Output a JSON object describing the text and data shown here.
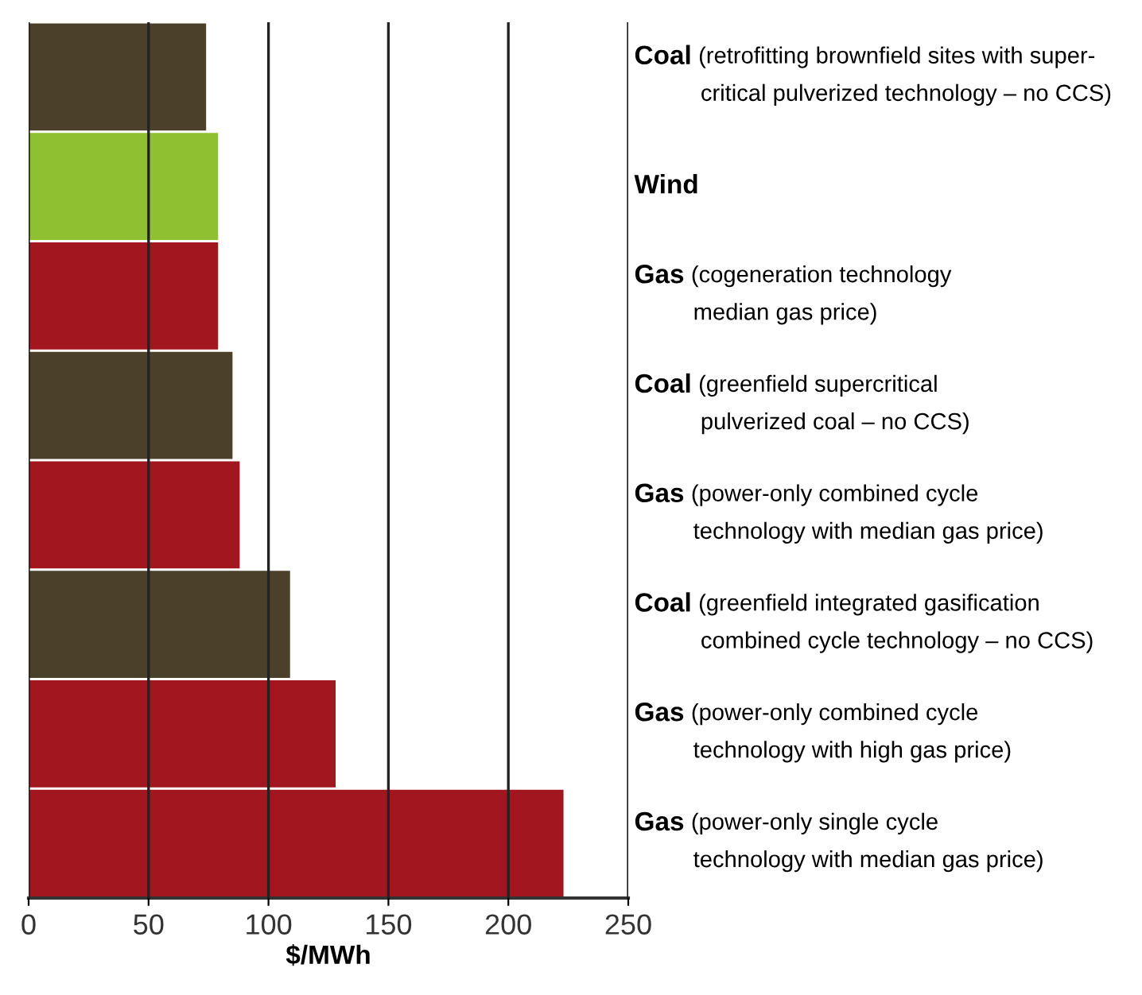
{
  "chart_data": {
    "type": "bar",
    "orientation": "horizontal",
    "xlabel": "$/MWh",
    "categories": [
      "Coal (retrofitting brownfield sites with super-\ncritical pulverized technology – no CCS)",
      "Wind",
      "Gas (cogeneration technology\nmedian gas price)",
      "Coal (greenfield supercritical\npulverized coal – no CCS)",
      "Gas (power-only combined cycle\ntechnology with median gas price)",
      "Coal (greenfield integrated gasification\ncombined cycle technology – no CCS)",
      "Gas (power-only combined cycle\ntechnology with high gas price)",
      "Gas (power-only single cycle\ntechnology with median gas price)"
    ],
    "values": [
      74,
      79,
      79,
      85,
      88,
      109,
      128,
      223
    ],
    "colors": [
      "#4b412b",
      "#8fc031",
      "#a2171f",
      "#4b412b",
      "#a2171f",
      "#4b412b",
      "#a2171f",
      "#a2171f"
    ],
    "xlim": [
      0,
      250
    ],
    "xticks": [
      0,
      50,
      100,
      150,
      200,
      250
    ],
    "grid": "x"
  }
}
